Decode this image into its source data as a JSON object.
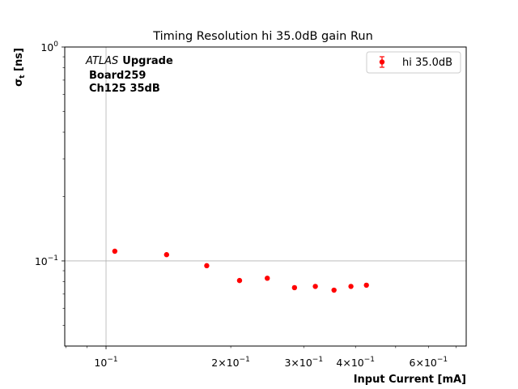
{
  "chart_data": {
    "type": "scatter",
    "title": "Timing Resolution hi 35.0dB gain Run",
    "xlabel": "Input Current [mA]",
    "ylabel_main": "σ",
    "ylabel_sub": "t",
    "ylabel_unit": " [ns]",
    "xscale": "log",
    "yscale": "log",
    "xlim": [
      0.0795,
      0.74
    ],
    "ylim": [
      0.04,
      1.0
    ],
    "grid": "major",
    "legend_position": "top-right",
    "x_major_ticks": [
      {
        "value": 0.1,
        "mantissa": "",
        "exp": "−1"
      }
    ],
    "x_minor_ticks": [
      {
        "value": 0.2,
        "mantissa": "2×",
        "exp": "−1"
      },
      {
        "value": 0.3,
        "mantissa": "3×",
        "exp": "−1"
      },
      {
        "value": 0.4,
        "mantissa": "4×",
        "exp": "−1"
      },
      {
        "value": 0.6,
        "mantissa": "6×",
        "exp": "−1"
      }
    ],
    "x_unlabeled_minor_ticks": [
      0.08,
      0.09,
      0.5,
      0.7
    ],
    "y_major_ticks": [
      {
        "value": 0.1,
        "exp": "−1"
      },
      {
        "value": 1.0,
        "exp": "0"
      }
    ],
    "y_minor_ticks": [
      0.05,
      0.06,
      0.07,
      0.08,
      0.09,
      0.2,
      0.3,
      0.4,
      0.5,
      0.6,
      0.7,
      0.8,
      0.9
    ],
    "series": [
      {
        "name": "hi 35.0dB",
        "color": "#ff0000",
        "x": [
          0.105,
          0.14,
          0.175,
          0.21,
          0.245,
          0.285,
          0.32,
          0.355,
          0.39,
          0.425
        ],
        "y": [
          0.111,
          0.107,
          0.095,
          0.081,
          0.083,
          0.075,
          0.076,
          0.073,
          0.076,
          0.077
        ]
      }
    ],
    "annotations": {
      "atlas": "ATLAS",
      "upgrade": "Upgrade",
      "board": "Board259",
      "channel": "Ch125 35dB"
    }
  }
}
